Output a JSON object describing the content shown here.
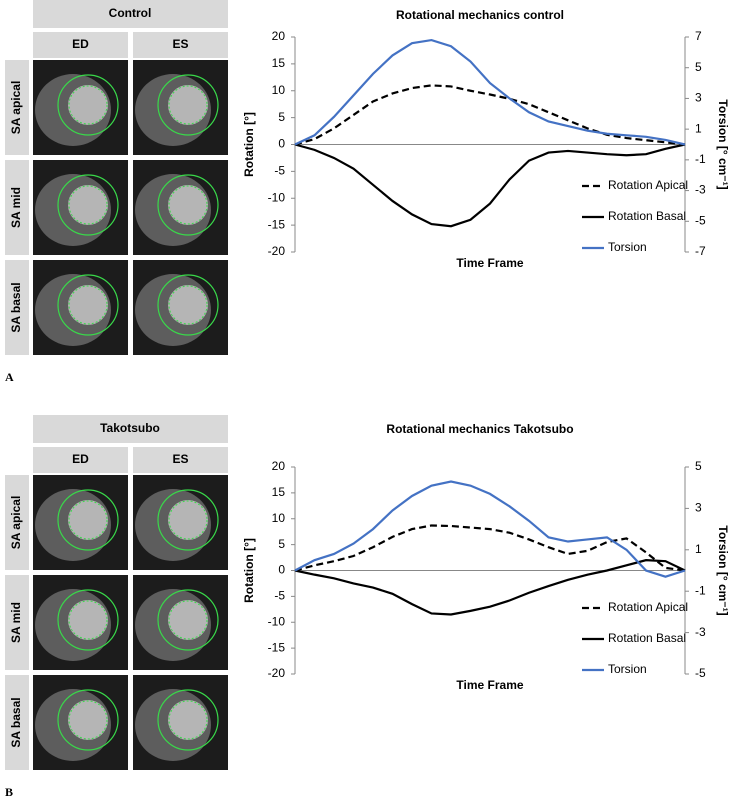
{
  "panels": [
    {
      "label": "A",
      "group": "Control",
      "columns": [
        "ED",
        "ES"
      ],
      "rows": [
        "SA apical",
        "SA mid",
        "SA basal"
      ]
    },
    {
      "label": "B",
      "group": "Takotsubo",
      "columns": [
        "ED",
        "ES"
      ],
      "rows": [
        "SA apical",
        "SA mid",
        "SA basal"
      ]
    }
  ],
  "chart_data": [
    {
      "type": "line",
      "title": "Rotational mechanics control",
      "x_label": "Time Frame",
      "y_label": "Rotation [°]",
      "y2_label": "Torsion [° cm⁻¹]",
      "categories": [
        null,
        null,
        null,
        null,
        null,
        null,
        null,
        null,
        null,
        null,
        null,
        null,
        null,
        null,
        null,
        null,
        null,
        null,
        null,
        null,
        null
      ],
      "ylim": [
        -20,
        20
      ],
      "yticks": [
        -20,
        -15,
        -10,
        -5,
        0,
        5,
        10,
        15,
        20
      ],
      "y2lim": [
        -7,
        7
      ],
      "y2ticks": [
        -7,
        -5,
        -3,
        -1,
        1,
        3,
        5,
        7
      ],
      "legend": "lower right",
      "series": [
        {
          "name": "Rotation Apical",
          "color": "#000000",
          "style": "dashed",
          "values": [
            0,
            1,
            3,
            5.5,
            8,
            9.5,
            10.5,
            11,
            10.8,
            10,
            9.3,
            8.5,
            7.5,
            6,
            4.5,
            3,
            1.8,
            1.2,
            0.8,
            0.4,
            0
          ]
        },
        {
          "name": "Rotation Basal",
          "color": "#000000",
          "style": "solid",
          "values": [
            0,
            -1,
            -2.5,
            -4.5,
            -7.5,
            -10.5,
            -13,
            -14.8,
            -15.2,
            -14,
            -11,
            -6.5,
            -3,
            -1.5,
            -1.2,
            -1.5,
            -1.8,
            -2,
            -1.8,
            -0.8,
            0
          ]
        },
        {
          "name": "Torsion",
          "color": "#4472c4",
          "style": "solid",
          "axis": "y2",
          "values": [
            0,
            0.6,
            1.8,
            3.2,
            4.6,
            5.8,
            6.6,
            6.8,
            6.4,
            5.4,
            4.0,
            3.0,
            2.1,
            1.5,
            1.2,
            0.9,
            0.7,
            0.6,
            0.5,
            0.3,
            0
          ]
        }
      ]
    },
    {
      "type": "line",
      "title": "Rotational mechanics Takotsubo",
      "x_label": "Time Frame",
      "y_label": "Rotation [°]",
      "y2_label": "Torsion [° cm⁻¹]",
      "categories": [
        null,
        null,
        null,
        null,
        null,
        null,
        null,
        null,
        null,
        null,
        null,
        null,
        null,
        null,
        null,
        null,
        null,
        null,
        null,
        null,
        null
      ],
      "ylim": [
        -20,
        20
      ],
      "yticks": [
        -20,
        -15,
        -10,
        -5,
        0,
        5,
        10,
        15,
        20
      ],
      "y2lim": [
        -5,
        5
      ],
      "y2ticks": [
        -5,
        -3,
        -1,
        1,
        3,
        5
      ],
      "legend": "lower right",
      "series": [
        {
          "name": "Rotation Apical",
          "color": "#000000",
          "style": "dashed",
          "values": [
            0,
            1,
            1.8,
            2.8,
            4.5,
            6.5,
            8,
            8.7,
            8.6,
            8.3,
            8,
            7.3,
            6,
            4.5,
            3.2,
            3.8,
            5.5,
            6.2,
            3.5,
            0.5,
            0
          ]
        },
        {
          "name": "Rotation Basal",
          "color": "#000000",
          "style": "solid",
          "values": [
            0,
            -0.8,
            -1.5,
            -2.5,
            -3.3,
            -4.5,
            -6.5,
            -8.3,
            -8.5,
            -7.8,
            -7,
            -5.8,
            -4.3,
            -3,
            -1.8,
            -0.8,
            0,
            1,
            2,
            1.8,
            0
          ]
        },
        {
          "name": "Torsion",
          "color": "#4472c4",
          "style": "solid",
          "axis": "y2",
          "values": [
            0,
            0.5,
            0.8,
            1.3,
            2,
            2.9,
            3.6,
            4.1,
            4.3,
            4.1,
            3.7,
            3.1,
            2.4,
            1.6,
            1.4,
            1.5,
            1.6,
            1.0,
            0,
            -0.3,
            0
          ]
        }
      ]
    }
  ]
}
